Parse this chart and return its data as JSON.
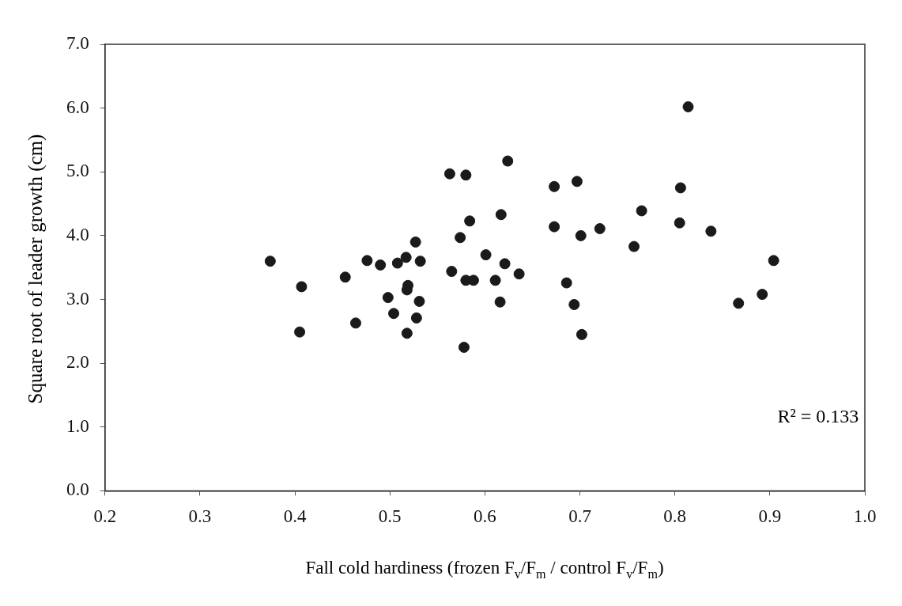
{
  "chart_data": {
    "type": "scatter",
    "xlabel": "Fall cold hardiness (frozen F$_{v}$/F$_{m}$ / control F$_{v}$/F$_{m}$)",
    "ylabel": "Square root of leader growth (cm)",
    "annotations": [
      "R² = 0.133"
    ],
    "x": [
      0.374,
      0.407,
      0.405,
      0.453,
      0.464,
      0.476,
      0.49,
      0.498,
      0.504,
      0.508,
      0.517,
      0.519,
      0.518,
      0.518,
      0.527,
      0.532,
      0.531,
      0.528,
      0.563,
      0.58,
      0.565,
      0.574,
      0.584,
      0.58,
      0.588,
      0.578,
      0.601,
      0.611,
      0.617,
      0.616,
      0.621,
      0.624,
      0.636,
      0.673,
      0.673,
      0.697,
      0.686,
      0.694,
      0.701,
      0.702,
      0.721,
      0.757,
      0.765,
      0.806,
      0.805,
      0.814,
      0.838,
      0.867,
      0.892,
      0.904
    ],
    "series": [
      {
        "color": "#1a1a1a",
        "values": [
          3.6,
          3.2,
          2.49,
          3.35,
          2.63,
          3.61,
          3.54,
          3.03,
          2.78,
          3.57,
          3.66,
          3.22,
          3.15,
          2.47,
          3.9,
          3.6,
          2.97,
          2.71,
          4.97,
          4.95,
          3.44,
          3.97,
          4.23,
          3.3,
          3.3,
          2.25,
          3.7,
          3.3,
          4.33,
          2.96,
          3.56,
          5.17,
          3.4,
          4.77,
          4.14,
          4.85,
          3.26,
          2.92,
          4.0,
          2.45,
          4.11,
          3.83,
          4.39,
          4.75,
          4.2,
          6.02,
          4.07,
          2.94,
          3.08,
          3.61
        ]
      }
    ],
    "xlim": [
      0.2,
      1.0
    ],
    "xticks": [
      0.2,
      0.3,
      0.4,
      0.5,
      0.6,
      0.7,
      0.8,
      0.9,
      {
        "value": 1,
        "label": "1.0"
      }
    ],
    "ylim": [
      0,
      7
    ],
    "yticks": [
      {
        "value": 0,
        "label": "0.0"
      },
      {
        "value": 1,
        "label": "1.0"
      },
      {
        "value": 2,
        "label": "2.0"
      },
      {
        "value": 3,
        "label": "3.0"
      },
      {
        "value": 4,
        "label": "4.0"
      },
      {
        "value": 5,
        "label": "5.0"
      },
      {
        "value": 6,
        "label": "6.0"
      },
      {
        "value": 7,
        "label": "7.0"
      }
    ],
    "grid": false,
    "legend": false,
    "marker": "circle"
  }
}
